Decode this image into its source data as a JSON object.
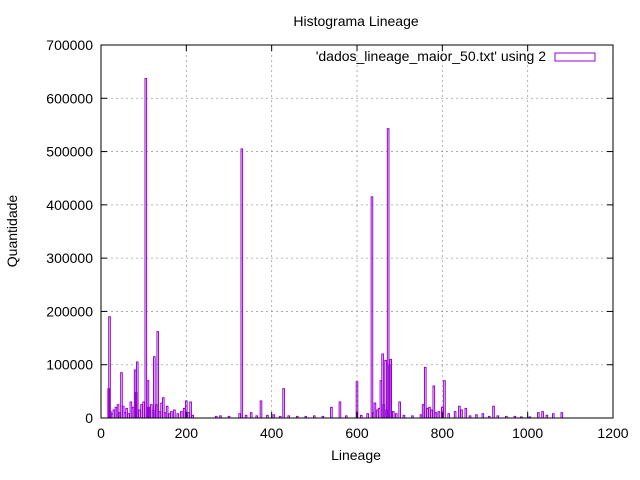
{
  "chart_data": {
    "type": "bar",
    "title": "Histograma Lineage",
    "xlabel": "Lineage",
    "ylabel": "Quantidade",
    "xlim": [
      0,
      1200
    ],
    "ylim": [
      0,
      700000
    ],
    "x_ticks": [
      "0",
      "200",
      "400",
      "600",
      "800",
      "1000",
      "1200"
    ],
    "y_ticks": [
      "0",
      "100000",
      "200000",
      "300000",
      "400000",
      "500000",
      "600000",
      "700000"
    ],
    "grid": true,
    "legend_position": "top-right",
    "series": [
      {
        "name": "'dados_lineage_maior_50.txt' using 2",
        "color": "#9400d3",
        "points": [
          [
            18,
            55000
          ],
          [
            20,
            190000
          ],
          [
            22,
            12000
          ],
          [
            26,
            8000
          ],
          [
            30,
            15000
          ],
          [
            35,
            20000
          ],
          [
            40,
            25000
          ],
          [
            43,
            10000
          ],
          [
            48,
            85000
          ],
          [
            52,
            22000
          ],
          [
            56,
            10000
          ],
          [
            60,
            18000
          ],
          [
            65,
            8000
          ],
          [
            70,
            30000
          ],
          [
            75,
            20000
          ],
          [
            80,
            90000
          ],
          [
            82,
            48000
          ],
          [
            85,
            105000
          ],
          [
            90,
            15000
          ],
          [
            95,
            25000
          ],
          [
            100,
            30000
          ],
          [
            105,
            637000
          ],
          [
            110,
            70000
          ],
          [
            112,
            20000
          ],
          [
            118,
            25000
          ],
          [
            122,
            15000
          ],
          [
            125,
            115000
          ],
          [
            130,
            25000
          ],
          [
            133,
            162000
          ],
          [
            138,
            12000
          ],
          [
            142,
            28000
          ],
          [
            146,
            38000
          ],
          [
            150,
            10000
          ],
          [
            155,
            22000
          ],
          [
            160,
            8000
          ],
          [
            165,
            12000
          ],
          [
            172,
            15000
          ],
          [
            180,
            8000
          ],
          [
            188,
            12000
          ],
          [
            195,
            18000
          ],
          [
            200,
            32000
          ],
          [
            205,
            10000
          ],
          [
            210,
            30000
          ],
          [
            215,
            5000
          ],
          [
            270,
            3000
          ],
          [
            280,
            4000
          ],
          [
            300,
            3000
          ],
          [
            325,
            8000
          ],
          [
            330,
            505000
          ],
          [
            340,
            5000
          ],
          [
            352,
            10000
          ],
          [
            365,
            4000
          ],
          [
            375,
            32000
          ],
          [
            390,
            5000
          ],
          [
            405,
            6000
          ],
          [
            420,
            3000
          ],
          [
            428,
            55000
          ],
          [
            440,
            4000
          ],
          [
            460,
            3000
          ],
          [
            480,
            3000
          ],
          [
            500,
            4000
          ],
          [
            520,
            3000
          ],
          [
            540,
            20000
          ],
          [
            560,
            30000
          ],
          [
            575,
            4000
          ],
          [
            600,
            68000
          ],
          [
            610,
            5000
          ],
          [
            625,
            8000
          ],
          [
            635,
            415000
          ],
          [
            638,
            10000
          ],
          [
            642,
            28000
          ],
          [
            648,
            15000
          ],
          [
            652,
            18000
          ],
          [
            656,
            70000
          ],
          [
            660,
            120000
          ],
          [
            663,
            25000
          ],
          [
            667,
            108000
          ],
          [
            670,
            15000
          ],
          [
            673,
            543000
          ],
          [
            676,
            100000
          ],
          [
            679,
            110000
          ],
          [
            685,
            12000
          ],
          [
            692,
            8000
          ],
          [
            700,
            30000
          ],
          [
            710,
            5000
          ],
          [
            730,
            4000
          ],
          [
            750,
            6000
          ],
          [
            755,
            25000
          ],
          [
            760,
            95000
          ],
          [
            765,
            18000
          ],
          [
            770,
            20000
          ],
          [
            775,
            15000
          ],
          [
            780,
            60000
          ],
          [
            785,
            10000
          ],
          [
            792,
            12000
          ],
          [
            800,
            20000
          ],
          [
            805,
            70000
          ],
          [
            815,
            8000
          ],
          [
            830,
            12000
          ],
          [
            840,
            22000
          ],
          [
            845,
            15000
          ],
          [
            855,
            18000
          ],
          [
            865,
            4000
          ],
          [
            880,
            6000
          ],
          [
            895,
            8000
          ],
          [
            910,
            3000
          ],
          [
            920,
            22000
          ],
          [
            930,
            4000
          ],
          [
            950,
            3000
          ],
          [
            970,
            3000
          ],
          [
            985,
            2000
          ],
          [
            1005,
            2000
          ],
          [
            1025,
            10000
          ],
          [
            1035,
            12000
          ],
          [
            1045,
            5000
          ],
          [
            1060,
            8000
          ],
          [
            1080,
            10000
          ]
        ]
      }
    ]
  }
}
